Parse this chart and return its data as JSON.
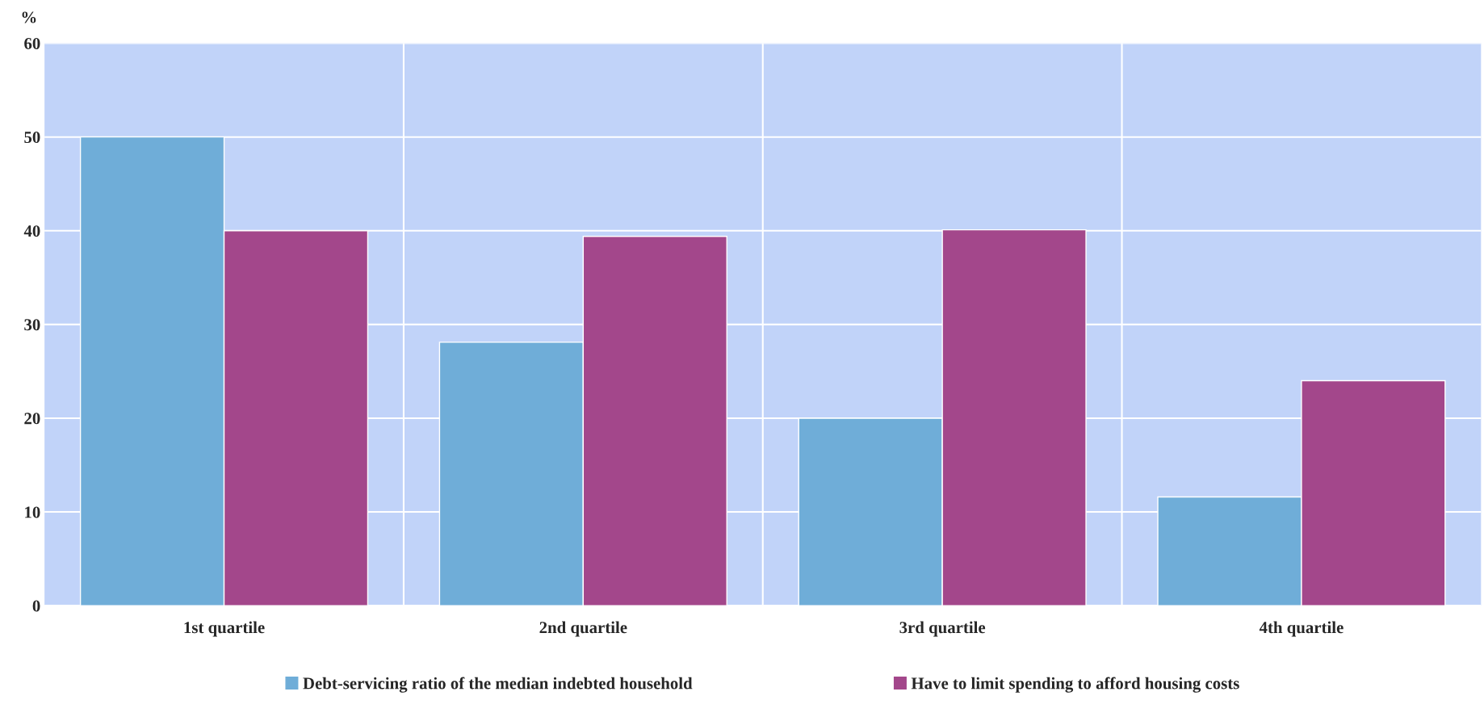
{
  "chart_data": {
    "type": "bar",
    "ylabel": "%",
    "categories": [
      "1st quartile",
      "2nd quartile",
      "3rd quartile",
      "4th quartile"
    ],
    "series": [
      {
        "name": "Debt-servicing ratio of the median indebted household",
        "color": "#6fadd8",
        "values": [
          50,
          28.1,
          20,
          11.6
        ]
      },
      {
        "name": "Have to limit spending to afford housing costs",
        "color": "#a3478b",
        "values": [
          40,
          39.4,
          40.1,
          24
        ]
      }
    ],
    "ylim": [
      0,
      60
    ],
    "yticks": [
      0,
      10,
      20,
      30,
      40,
      50,
      60
    ],
    "grid": true,
    "legend": "bottom"
  }
}
